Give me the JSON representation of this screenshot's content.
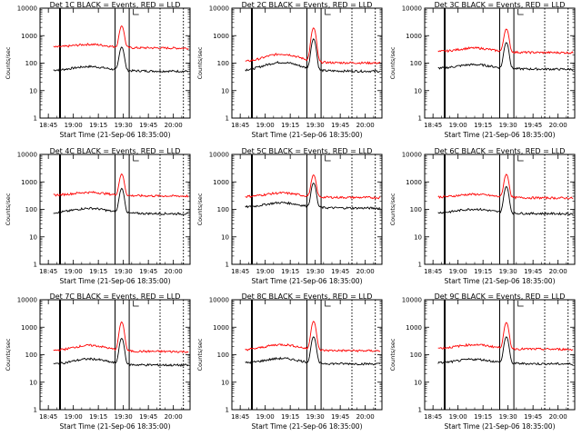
{
  "chart_data": [
    {
      "type": "line",
      "title": "Det 1C BLACK = Events, RED = LLD",
      "ylabel": "Counts/sec",
      "xlabel": "Start Time (21-Sep-06 18:35:00)",
      "yscale": "log",
      "ylim": [
        1,
        10000
      ],
      "xlim": [
        "18:40",
        "20:10"
      ],
      "y_ticks": [
        "1",
        "10",
        "100",
        "1000",
        "10000"
      ],
      "x_ticks": [
        "18:45",
        "19:00",
        "19:15",
        "19:30",
        "19:45",
        "20:00"
      ],
      "series": [
        {
          "name": "Events",
          "color": "#000000",
          "level": 55,
          "bump": 1.4,
          "peak": 330
        },
        {
          "name": "LLD",
          "color": "#ff0000",
          "level": 380,
          "bump": 1.3,
          "peak": 1900
        }
      ]
    },
    {
      "type": "line",
      "title": "Det 2C BLACK = Events, RED = LLD",
      "ylabel": "Counts/sec",
      "xlabel": "Start Time (21-Sep-06 18:35:00)",
      "yscale": "log",
      "ylim": [
        1,
        10000
      ],
      "xlim": [
        "18:40",
        "20:10"
      ],
      "y_ticks": [
        "1",
        "10",
        "100",
        "1000",
        "10000"
      ],
      "x_ticks": [
        "18:45",
        "19:00",
        "19:15",
        "19:30",
        "19:45",
        "20:00"
      ],
      "series": [
        {
          "name": "Events",
          "color": "#000000",
          "level": 55,
          "bump": 2.0,
          "peak": 700
        },
        {
          "name": "LLD",
          "color": "#ff0000",
          "level": 110,
          "bump": 2.0,
          "peak": 1800
        }
      ]
    },
    {
      "type": "line",
      "title": "Det 3C BLACK = Events, RED = LLD",
      "ylabel": "Counts/sec",
      "xlabel": "Start Time (21-Sep-06 18:35:00)",
      "yscale": "log",
      "ylim": [
        1,
        10000
      ],
      "xlim": [
        "18:40",
        "20:10"
      ],
      "y_ticks": [
        "1",
        "10",
        "100",
        "1000",
        "10000"
      ],
      "x_ticks": [
        "18:45",
        "19:00",
        "19:15",
        "19:30",
        "19:45",
        "20:00"
      ],
      "series": [
        {
          "name": "Events",
          "color": "#000000",
          "level": 65,
          "bump": 1.4,
          "peak": 500
        },
        {
          "name": "LLD",
          "color": "#ff0000",
          "level": 260,
          "bump": 1.4,
          "peak": 1500
        }
      ]
    },
    {
      "type": "line",
      "title": "Det 4C BLACK = Events, RED = LLD",
      "ylabel": "Counts/sec",
      "xlabel": "Start Time (21-Sep-06 18:35:00)",
      "yscale": "log",
      "ylim": [
        1,
        10000
      ],
      "xlim": [
        "18:40",
        "20:10"
      ],
      "y_ticks": [
        "1",
        "10",
        "100",
        "1000",
        "10000"
      ],
      "x_ticks": [
        "18:45",
        "19:00",
        "19:15",
        "19:30",
        "19:45",
        "20:00"
      ],
      "series": [
        {
          "name": "Events",
          "color": "#000000",
          "level": 75,
          "bump": 1.5,
          "peak": 500
        },
        {
          "name": "LLD",
          "color": "#ff0000",
          "level": 330,
          "bump": 1.3,
          "peak": 1600
        }
      ]
    },
    {
      "type": "line",
      "title": "Det 5C BLACK = Events, RED = LLD",
      "ylabel": "Counts/sec",
      "xlabel": "Start Time (21-Sep-06 18:35:00)",
      "yscale": "log",
      "ylim": [
        1,
        10000
      ],
      "xlim": [
        "18:40",
        "20:10"
      ],
      "y_ticks": [
        "1",
        "10",
        "100",
        "1000",
        "10000"
      ],
      "x_ticks": [
        "18:45",
        "19:00",
        "19:15",
        "19:30",
        "19:45",
        "20:00"
      ],
      "series": [
        {
          "name": "Events",
          "color": "#000000",
          "level": 120,
          "bump": 1.5,
          "peak": 800
        },
        {
          "name": "LLD",
          "color": "#ff0000",
          "level": 290,
          "bump": 1.4,
          "peak": 1500
        }
      ]
    },
    {
      "type": "line",
      "title": "Det 6C BLACK = Events, RED = LLD",
      "ylabel": "Counts/sec",
      "xlabel": "Start Time (21-Sep-06 18:35:00)",
      "yscale": "log",
      "ylim": [
        1,
        10000
      ],
      "xlim": [
        "18:40",
        "20:10"
      ],
      "y_ticks": [
        "1",
        "10",
        "100",
        "1000",
        "10000"
      ],
      "x_ticks": [
        "18:45",
        "19:00",
        "19:15",
        "19:30",
        "19:45",
        "20:00"
      ],
      "series": [
        {
          "name": "Events",
          "color": "#000000",
          "level": 75,
          "bump": 1.4,
          "peak": 600
        },
        {
          "name": "LLD",
          "color": "#ff0000",
          "level": 280,
          "bump": 1.3,
          "peak": 1600
        }
      ]
    },
    {
      "type": "line",
      "title": "Det 7C BLACK = Events, RED = LLD",
      "ylabel": "Counts/sec",
      "xlabel": "Start Time (21-Sep-06 18:35:00)",
      "yscale": "log",
      "ylim": [
        1,
        10000
      ],
      "xlim": [
        "18:40",
        "20:10"
      ],
      "y_ticks": [
        "1",
        "10",
        "100",
        "1000",
        "10000"
      ],
      "x_ticks": [
        "18:45",
        "19:00",
        "19:15",
        "19:30",
        "19:45",
        "20:00"
      ],
      "series": [
        {
          "name": "Events",
          "color": "#000000",
          "level": 45,
          "bump": 1.6,
          "peak": 350
        },
        {
          "name": "LLD",
          "color": "#ff0000",
          "level": 140,
          "bump": 1.6,
          "peak": 1400
        }
      ]
    },
    {
      "type": "line",
      "title": "Det 8C BLACK = Events, RED = LLD",
      "ylabel": "Counts/sec",
      "xlabel": "Start Time (21-Sep-06 18:35:00)",
      "yscale": "log",
      "ylim": [
        1,
        10000
      ],
      "xlim": [
        "18:40",
        "20:10"
      ],
      "y_ticks": [
        "1",
        "10",
        "100",
        "1000",
        "10000"
      ],
      "x_ticks": [
        "18:45",
        "19:00",
        "19:15",
        "19:30",
        "19:45",
        "20:00"
      ],
      "series": [
        {
          "name": "Events",
          "color": "#000000",
          "level": 50,
          "bump": 1.5,
          "peak": 400
        },
        {
          "name": "LLD",
          "color": "#ff0000",
          "level": 150,
          "bump": 1.6,
          "peak": 1500
        }
      ]
    },
    {
      "type": "line",
      "title": "Det 9C BLACK = Events, RED = LLD",
      "ylabel": "Counts/sec",
      "xlabel": "Start Time (21-Sep-06 18:35:00)",
      "yscale": "log",
      "ylim": [
        1,
        10000
      ],
      "xlim": [
        "18:40",
        "20:10"
      ],
      "y_ticks": [
        "1",
        "10",
        "100",
        "1000",
        "10000"
      ],
      "x_ticks": [
        "18:45",
        "19:00",
        "19:15",
        "19:30",
        "19:45",
        "20:00"
      ],
      "series": [
        {
          "name": "Events",
          "color": "#000000",
          "level": 50,
          "bump": 1.4,
          "peak": 400
        },
        {
          "name": "LLD",
          "color": "#ff0000",
          "level": 170,
          "bump": 1.4,
          "peak": 1300
        }
      ]
    }
  ]
}
